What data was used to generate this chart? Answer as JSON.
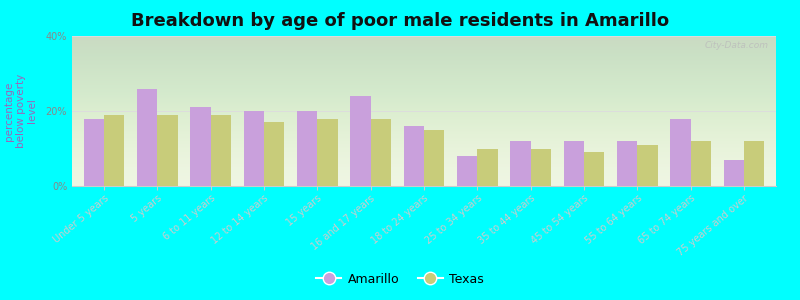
{
  "title": "Breakdown by age of poor male residents in Amarillo",
  "ylabel": "percentage\nbelow poverty\nlevel",
  "categories": [
    "Under 5 years",
    "5 years",
    "6 to 11 years",
    "12 to 14 years",
    "15 years",
    "16 and 17 years",
    "18 to 24 years",
    "25 to 34 years",
    "35 to 44 years",
    "45 to 54 years",
    "55 to 64 years",
    "65 to 74 years",
    "75 years and over"
  ],
  "amarillo": [
    18,
    26,
    21,
    20,
    20,
    24,
    16,
    8,
    12,
    12,
    12,
    18,
    7
  ],
  "texas": [
    19,
    19,
    19,
    17,
    18,
    18,
    15,
    10,
    10,
    9,
    11,
    12,
    12
  ],
  "amarillo_color": "#c9a0dc",
  "texas_color": "#c8cc7a",
  "background_color": "#00ffff",
  "plot_bg_color": "#eef5e0",
  "ylim": [
    0,
    40
  ],
  "yticks": [
    0,
    20,
    40
  ],
  "ytick_labels": [
    "0%",
    "20%",
    "40%"
  ],
  "title_fontsize": 13,
  "axis_label_fontsize": 7.5,
  "tick_fontsize": 7,
  "bar_width": 0.38,
  "legend_amarillo": "Amarillo",
  "legend_texas": "Texas"
}
